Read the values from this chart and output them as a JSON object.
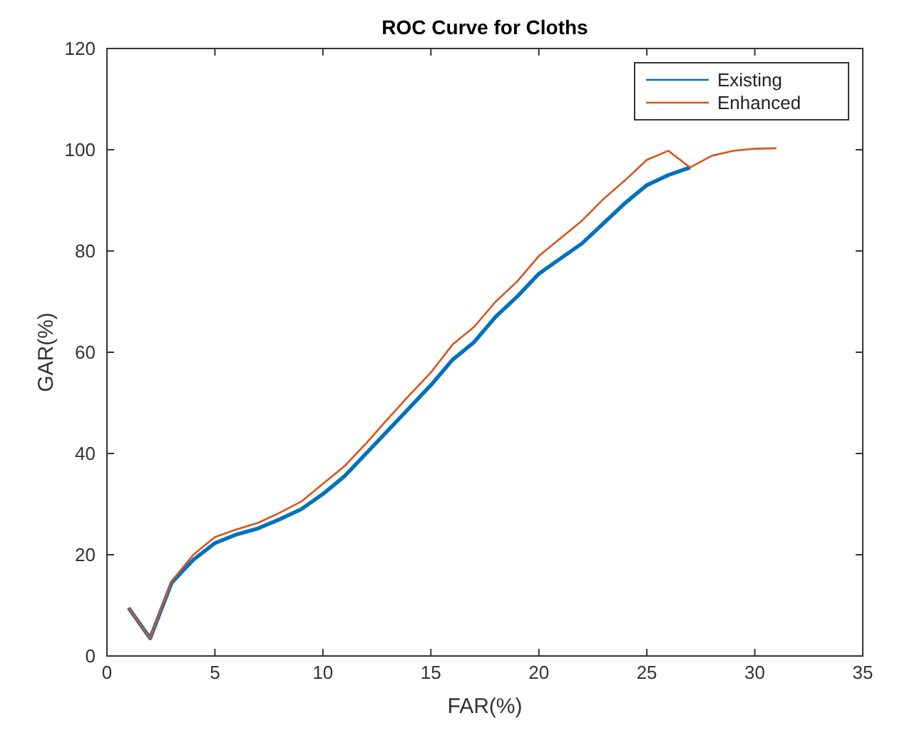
{
  "chart_data": {
    "type": "line",
    "title": "ROC Curve for Cloths",
    "xlabel": "FAR(%)",
    "ylabel": "GAR(%)",
    "xlim": [
      0,
      35
    ],
    "xticks": [
      0,
      5,
      10,
      15,
      20,
      25,
      30,
      35
    ],
    "ylim": [
      0,
      120
    ],
    "yticks": [
      0,
      20,
      40,
      60,
      80,
      100,
      120
    ],
    "grid": false,
    "legend": "top right",
    "series": [
      {
        "name": "Existing",
        "color": "#0072bd",
        "x": [
          1,
          2,
          3,
          4,
          5,
          6,
          7,
          8,
          9,
          10,
          11,
          12,
          13,
          14,
          15,
          16,
          17,
          18,
          19,
          20,
          21,
          22,
          23,
          24,
          25,
          26,
          27
        ],
        "values": [
          9.5,
          3.5,
          14.5,
          19,
          22.3,
          24,
          25.2,
          27,
          29,
          32,
          35.5,
          40,
          44.5,
          49,
          53.5,
          58.5,
          62,
          67,
          71,
          75.5,
          78.5,
          81.5,
          85.5,
          89.5,
          93,
          95,
          96.5
        ]
      },
      {
        "name": "Enhanced",
        "color": "#d95319",
        "x": [
          1,
          2,
          3,
          4,
          5,
          6,
          7,
          8,
          9,
          10,
          11,
          12,
          13,
          14,
          15,
          16,
          17,
          18,
          19,
          20,
          21,
          22,
          23,
          24,
          25,
          26,
          27,
          28,
          29,
          30,
          31
        ],
        "values": [
          9.5,
          3.5,
          14.8,
          20,
          23.5,
          25,
          26.3,
          28.3,
          30.5,
          34,
          37.5,
          42,
          46.8,
          51.5,
          56,
          61.5,
          65,
          70,
          74,
          79,
          82.5,
          86,
          90.3,
          94,
          98,
          99.8,
          96.5,
          98.8,
          99.8,
          100.2,
          100.3
        ]
      }
    ]
  }
}
